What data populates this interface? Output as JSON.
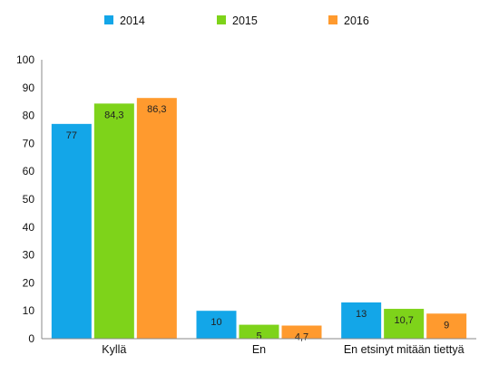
{
  "chart_data": {
    "type": "bar",
    "categories": [
      "Kyllä",
      "En",
      "En etsinyt mitään tiettyä"
    ],
    "series": [
      {
        "name": "2014",
        "color": "#13a6e8",
        "values": [
          77,
          10,
          13
        ],
        "labels": [
          "77",
          "10",
          "13"
        ]
      },
      {
        "name": "2015",
        "color": "#7ed31a",
        "values": [
          84.3,
          5,
          10.7
        ],
        "labels": [
          "84,3",
          "5",
          "10,7"
        ]
      },
      {
        "name": "2016",
        "color": "#ff9a2e",
        "values": [
          86.3,
          4.7,
          9
        ],
        "labels": [
          "86,3",
          "4,7",
          "9"
        ]
      }
    ],
    "ylim": [
      0,
      100
    ],
    "yticks": [
      "0",
      "10",
      "20",
      "30",
      "40",
      "50",
      "60",
      "70",
      "80",
      "90",
      "100"
    ],
    "legend_position": "top",
    "grid": false,
    "title": "",
    "xlabel": "",
    "ylabel": ""
  }
}
